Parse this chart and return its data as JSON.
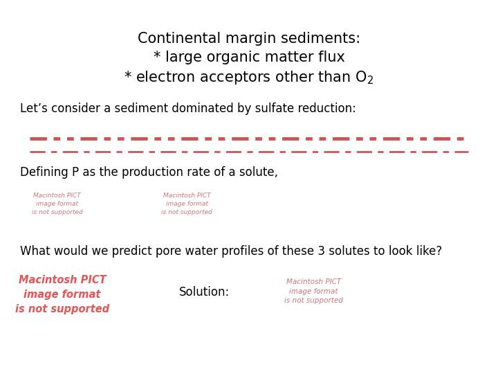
{
  "background_color": "#ffffff",
  "title_lines": [
    "Continental margin sediments:",
    "* large organic matter flux",
    "* electron acceptors other than O"
  ],
  "title_subscript": "2",
  "title_fontsize": 15,
  "title_font": "DejaVu Sans",
  "body_fontsize": 12,
  "body_font": "DejaVu Sans",
  "line1": "Let’s consider a sediment dominated by sulfate reduction:",
  "line2": "Defining P as the production rate of a solute,",
  "line3": "What would we predict pore water profiles of these 3 solutes to look like?",
  "line4": "Solution:",
  "pict_color_small": "#c87878",
  "pict_color_large": "#e05555",
  "pict_color_right": "#c87878",
  "pict_texts": [
    "Macintosh PICT\nimage format\nis not supported",
    "Macintosh PICT\nimage format\nis not supported",
    "Macintosh PICT\nimage format\nis not supported",
    "Macintosh PICT\nimage format\nis not supported"
  ],
  "dashed_line_color": "#cc5555",
  "figsize": [
    7.2,
    5.4
  ],
  "dpi": 100
}
